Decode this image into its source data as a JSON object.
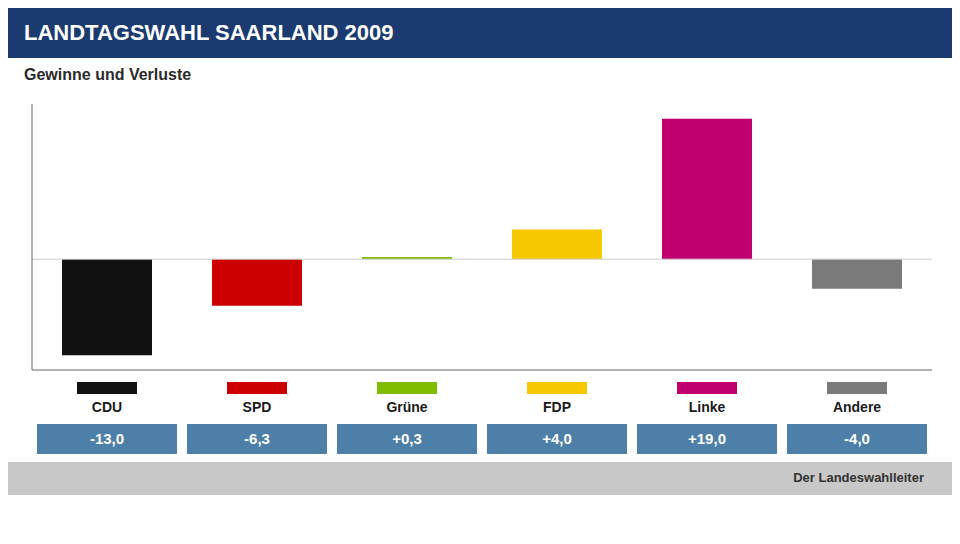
{
  "chart_data": {
    "type": "bar",
    "title": "LANDTAGSWAHL SAARLAND 2009",
    "subtitle": "Gewinne und Verluste",
    "categories": [
      "CDU",
      "SPD",
      "Grüne",
      "FDP",
      "Linke",
      "Andere"
    ],
    "values": [
      -13.0,
      -6.3,
      0.3,
      4.0,
      19.0,
      -4.0
    ],
    "value_labels": [
      "-13,0",
      "-6,3",
      "+0,3",
      "+4,0",
      "+19,0",
      "-4,0"
    ],
    "data_labels": true,
    "colors": [
      "#111111",
      "#cc0000",
      "#80bc00",
      "#f5c800",
      "#c0006e",
      "#7a7a7a"
    ],
    "ylim": [
      -15,
      21
    ],
    "grid": false,
    "tick_labels": "x",
    "annotations": [
      "Der Landeswahlleiter"
    ]
  }
}
